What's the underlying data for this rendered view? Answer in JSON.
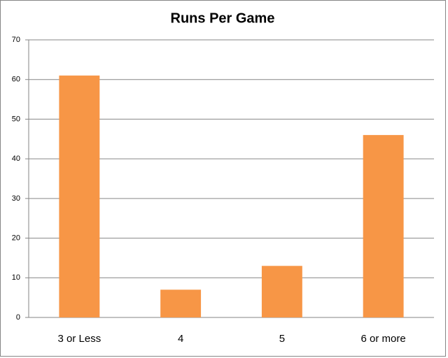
{
  "chart_data": {
    "type": "bar",
    "title": "Runs Per Game",
    "categories": [
      "3 or Less",
      "4",
      "5",
      "6 or more"
    ],
    "values": [
      61,
      7,
      13,
      46
    ],
    "color": "#f79646",
    "ylim": [
      0,
      70
    ],
    "yticks": [
      0,
      10,
      20,
      30,
      40,
      50,
      60,
      70
    ],
    "grid": true
  }
}
